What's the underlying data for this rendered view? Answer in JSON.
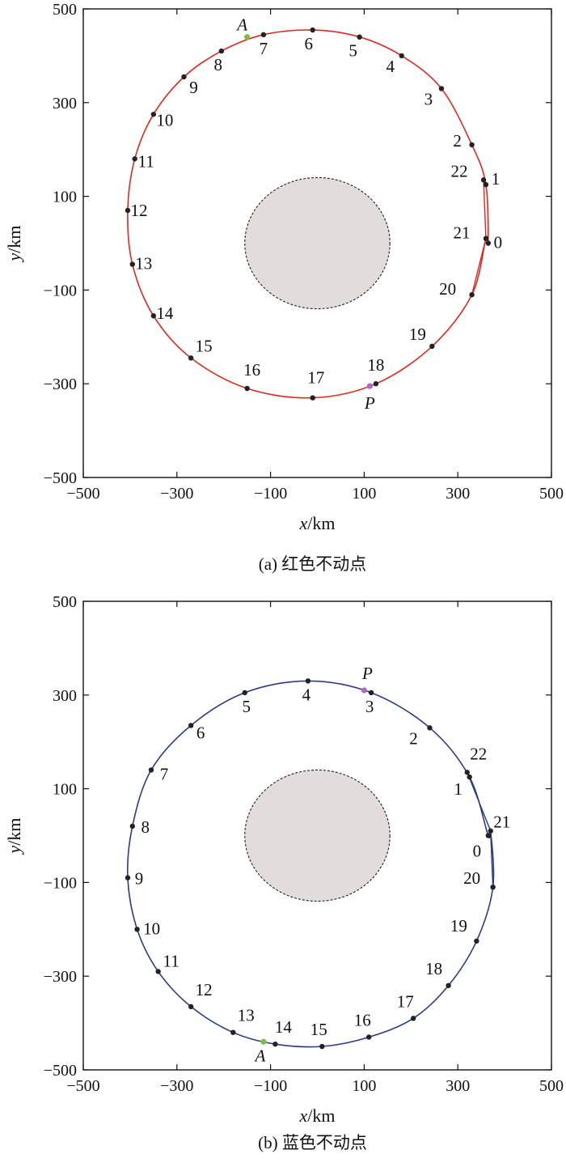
{
  "figure": {
    "caption_a": "(a) 红色不动点",
    "caption_b": "(b) 蓝色不动点"
  },
  "chart_data": [
    {
      "type": "scatter",
      "panel": "a",
      "xlabel": "x/km",
      "ylabel": "y/km",
      "xlim": [
        -500,
        500
      ],
      "ylim": [
        -500,
        500
      ],
      "xticks": [
        -500,
        -300,
        -100,
        100,
        300,
        500
      ],
      "yticks": [
        -500,
        -300,
        -100,
        100,
        300,
        500
      ],
      "grid": false,
      "orbit_color": "#e0281e",
      "point_color": "#222222",
      "central_body": {
        "cx": 0,
        "cy": 0,
        "rx": 155,
        "ry": 140,
        "fill": "#e2dcdb"
      },
      "points": [
        {
          "label": "0",
          "x": 365,
          "y": 0
        },
        {
          "label": "1",
          "x": 360,
          "y": 125
        },
        {
          "label": "2",
          "x": 330,
          "y": 210
        },
        {
          "label": "3",
          "x": 265,
          "y": 330
        },
        {
          "label": "4",
          "x": 180,
          "y": 400
        },
        {
          "label": "5",
          "x": 90,
          "y": 440
        },
        {
          "label": "6",
          "x": -10,
          "y": 455
        },
        {
          "label": "7",
          "x": -115,
          "y": 445
        },
        {
          "label": "8",
          "x": -205,
          "y": 410
        },
        {
          "label": "9",
          "x": -285,
          "y": 355
        },
        {
          "label": "10",
          "x": -350,
          "y": 275
        },
        {
          "label": "11",
          "x": -390,
          "y": 180
        },
        {
          "label": "12",
          "x": -405,
          "y": 70
        },
        {
          "label": "13",
          "x": -395,
          "y": -45
        },
        {
          "label": "14",
          "x": -350,
          "y": -155
        },
        {
          "label": "15",
          "x": -270,
          "y": -245
        },
        {
          "label": "16",
          "x": -150,
          "y": -310
        },
        {
          "label": "17",
          "x": -10,
          "y": -330
        },
        {
          "label": "18",
          "x": 125,
          "y": -300
        },
        {
          "label": "19",
          "x": 245,
          "y": -220
        },
        {
          "label": "20",
          "x": 330,
          "y": -110
        },
        {
          "label": "21",
          "x": 360,
          "y": 10
        },
        {
          "label": "22",
          "x": 355,
          "y": 135
        }
      ],
      "special_points": [
        {
          "label": "A",
          "x": -150,
          "y": 440,
          "color": "#7bc043"
        },
        {
          "label": "P",
          "x": 112,
          "y": -305,
          "color": "#b266c8"
        }
      ]
    },
    {
      "type": "scatter",
      "panel": "b",
      "xlabel": "x/km",
      "ylabel": "y/km",
      "xlim": [
        -500,
        500
      ],
      "ylim": [
        -500,
        500
      ],
      "xticks": [
        -500,
        -300,
        -100,
        100,
        300,
        500
      ],
      "yticks": [
        -500,
        -300,
        -100,
        100,
        300,
        500
      ],
      "grid": false,
      "orbit_color": "#2b3a8c",
      "point_color": "#222222",
      "central_body": {
        "cx": 0,
        "cy": 0,
        "rx": 155,
        "ry": 140,
        "fill": "#e2dcdb"
      },
      "points": [
        {
          "label": "0",
          "x": 365,
          "y": 0
        },
        {
          "label": "1",
          "x": 325,
          "y": 125
        },
        {
          "label": "2",
          "x": 240,
          "y": 230
        },
        {
          "label": "3",
          "x": 115,
          "y": 305
        },
        {
          "label": "4",
          "x": -20,
          "y": 330
        },
        {
          "label": "5",
          "x": -155,
          "y": 305
        },
        {
          "label": "6",
          "x": -270,
          "y": 235
        },
        {
          "label": "7",
          "x": -355,
          "y": 140
        },
        {
          "label": "8",
          "x": -395,
          "y": 20
        },
        {
          "label": "9",
          "x": -405,
          "y": -90
        },
        {
          "label": "10",
          "x": -385,
          "y": -200
        },
        {
          "label": "11",
          "x": -340,
          "y": -290
        },
        {
          "label": "12",
          "x": -270,
          "y": -365
        },
        {
          "label": "13",
          "x": -180,
          "y": -420
        },
        {
          "label": "14",
          "x": -90,
          "y": -445
        },
        {
          "label": "15",
          "x": 10,
          "y": -450
        },
        {
          "label": "16",
          "x": 110,
          "y": -430
        },
        {
          "label": "17",
          "x": 205,
          "y": -390
        },
        {
          "label": "18",
          "x": 280,
          "y": -320
        },
        {
          "label": "19",
          "x": 340,
          "y": -225
        },
        {
          "label": "20",
          "x": 375,
          "y": -110
        },
        {
          "label": "21",
          "x": 370,
          "y": 10
        },
        {
          "label": "22",
          "x": 320,
          "y": 135
        }
      ],
      "special_points": [
        {
          "label": "P",
          "x": 100,
          "y": 310,
          "color": "#b266c8"
        },
        {
          "label": "A",
          "x": -115,
          "y": -440,
          "color": "#7bc043"
        }
      ]
    }
  ]
}
